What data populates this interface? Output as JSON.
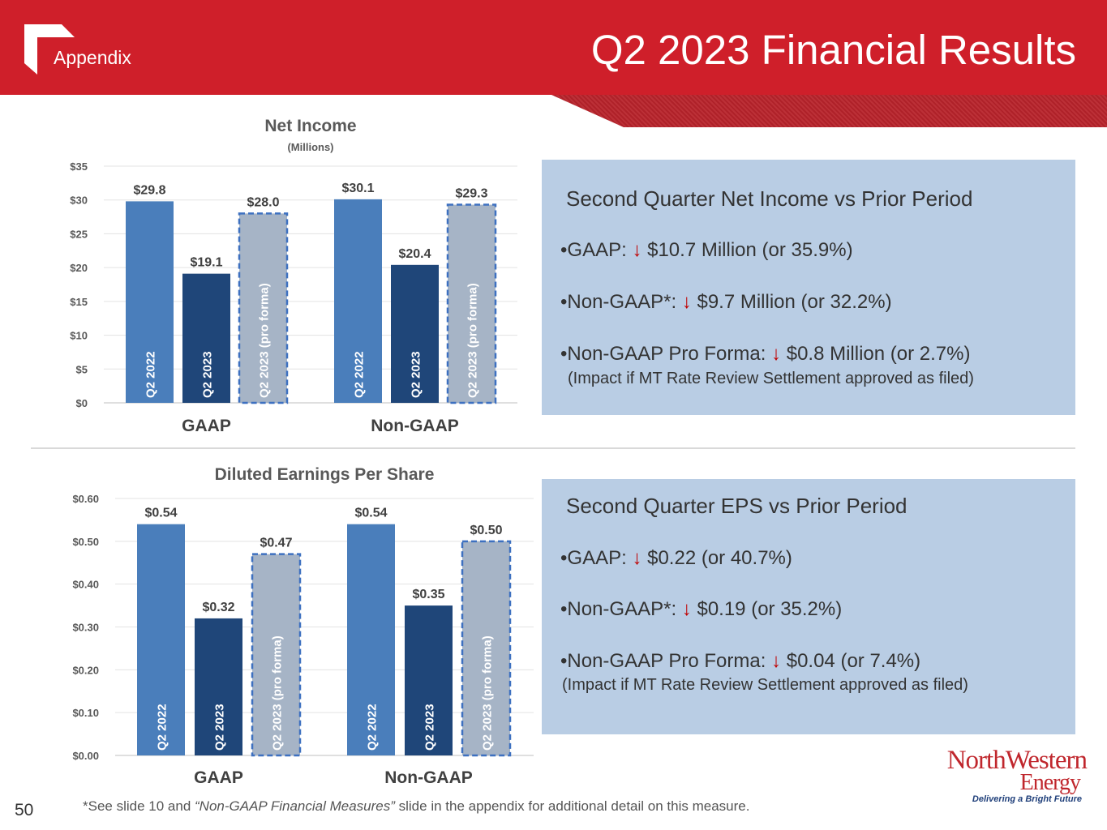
{
  "header": {
    "section_label": "Appendix",
    "title": "Q2 2023 Financial Results"
  },
  "colors": {
    "header_red": "#cf1f2a",
    "bar_q2_2022": "#4a7ebb",
    "bar_q2_2023": "#1f4679",
    "bar_pro_forma": "#a6b4c6",
    "pro_forma_border": "#3d70c0",
    "info_box": "#b9cde4",
    "arrow_red": "#c00000"
  },
  "chart_data": [
    {
      "type": "bar",
      "title": "Net Income",
      "subtitle": "(Millions)",
      "groups": [
        "GAAP",
        "Non-GAAP"
      ],
      "bar_labels": [
        "Q2 2022",
        "Q2 2023",
        "Q2 2023 (pro forma)"
      ],
      "series": [
        {
          "name": "Q2 2022",
          "values": [
            29.8,
            30.1
          ]
        },
        {
          "name": "Q2 2023",
          "values": [
            19.1,
            20.4
          ]
        },
        {
          "name": "Q2 2023 (pro forma)",
          "values": [
            28.0,
            29.3
          ]
        }
      ],
      "value_labels": [
        [
          "$29.8",
          "$19.1",
          "$28.0"
        ],
        [
          "$30.1",
          "$20.4",
          "$29.3"
        ]
      ],
      "y_ticks": [
        0,
        5,
        10,
        15,
        20,
        25,
        30,
        35
      ],
      "y_tick_labels": [
        "$0",
        "$5",
        "$10",
        "$15",
        "$20",
        "$25",
        "$30",
        "$35"
      ],
      "ylim": [
        0,
        35
      ],
      "grid": true
    },
    {
      "type": "bar",
      "title": "Diluted Earnings Per Share",
      "subtitle": "",
      "groups": [
        "GAAP",
        "Non-GAAP"
      ],
      "bar_labels": [
        "Q2 2022",
        "Q2 2023",
        "Q2 2023 (pro forma)"
      ],
      "series": [
        {
          "name": "Q2 2022",
          "values": [
            0.54,
            0.54
          ]
        },
        {
          "name": "Q2 2023",
          "values": [
            0.32,
            0.35
          ]
        },
        {
          "name": "Q2 2023 (pro forma)",
          "values": [
            0.47,
            0.5
          ]
        }
      ],
      "value_labels": [
        [
          "$0.54",
          "$0.32",
          "$0.47"
        ],
        [
          "$0.54",
          "$0.35",
          "$0.50"
        ]
      ],
      "y_ticks": [
        0,
        0.1,
        0.2,
        0.3,
        0.4,
        0.5,
        0.6
      ],
      "y_tick_labels": [
        "$0.00",
        "$0.10",
        "$0.20",
        "$0.30",
        "$0.40",
        "$0.50",
        "$0.60"
      ],
      "ylim": [
        0,
        0.6
      ],
      "grid": true
    }
  ],
  "net_income_box": {
    "heading": "Second Quarter Net Income vs Prior Period",
    "gaap_label": "•GAAP:",
    "gaap_value": "$10.7 Million (or 35.9%)",
    "non_gaap_label": "•Non-GAAP*:",
    "non_gaap_value": "$9.7 Million (or 32.2%)",
    "pro_forma_label": "•Non-GAAP Pro Forma:",
    "pro_forma_value": "$0.8 Million (or 2.7%)",
    "note": "(Impact if MT Rate Review Settlement approved as filed)"
  },
  "eps_box": {
    "heading": "Second Quarter EPS vs Prior Period",
    "gaap_label": "•GAAP:",
    "gaap_value": "$0.22 (or 40.7%)",
    "non_gaap_label": "•Non-GAAP*:",
    "non_gaap_value": "$0.19 (or 35.2%)",
    "pro_forma_label": "•Non-GAAP Pro Forma:",
    "pro_forma_value": "$0.04 (or 7.4%)",
    "note": "(Impact if MT Rate Review Settlement approved as filed)"
  },
  "arrow_glyph": "↓",
  "footer": {
    "page_number": "50",
    "footnote_prefix": "*See slide 10 and ",
    "footnote_italic": "“Non-GAAP Financial Measures”",
    "footnote_suffix": " slide in the appendix for additional detail on this measure."
  },
  "brand": {
    "name": "NorthWestern",
    "sub": "Energy",
    "tagline": "Delivering a Bright Future"
  }
}
